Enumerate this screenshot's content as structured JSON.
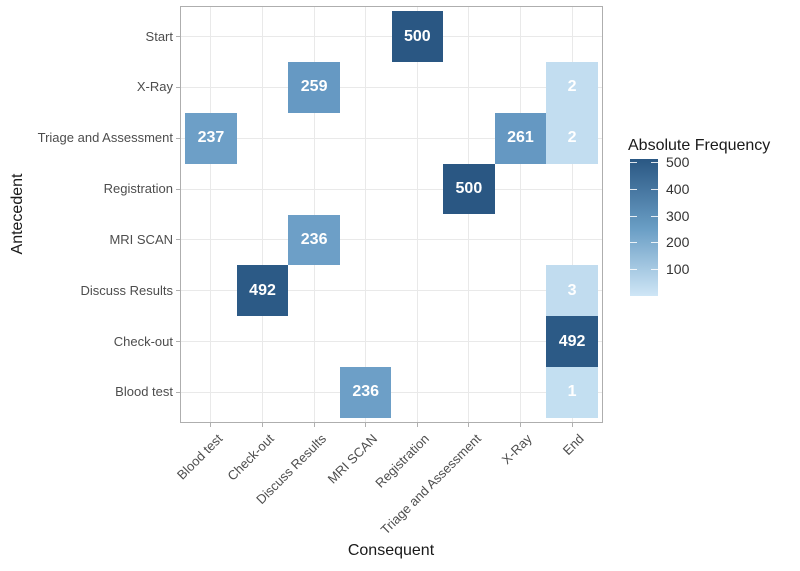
{
  "chart_data": {
    "type": "heatmap",
    "title": "",
    "xlabel": "Consequent",
    "ylabel": "Antecedent",
    "x_categories": [
      "Blood test",
      "Check-out",
      "Discuss Results",
      "MRI SCAN",
      "Registration",
      "Triage and Assessment",
      "X-Ray",
      "End"
    ],
    "y_categories": [
      "Start",
      "X-Ray",
      "Triage and Assessment",
      "Registration",
      "MRI SCAN",
      "Discuss Results",
      "Check-out",
      "Blood test"
    ],
    "grid": true,
    "legend_position": "right",
    "legend": {
      "title": "Absolute Frequency",
      "tick_labels": [
        500,
        400,
        300,
        200,
        100
      ],
      "range": [
        0,
        500
      ],
      "gradient_top": "#2a5783",
      "gradient_mid": "#6a9ec5",
      "gradient_bottom": "#cfe6f6"
    },
    "cells": [
      {
        "antecedent": "Start",
        "consequent": "Registration",
        "value": 500,
        "color": "#2a5783"
      },
      {
        "antecedent": "X-Ray",
        "consequent": "Discuss Results",
        "value": 259,
        "color": "#6699c3"
      },
      {
        "antecedent": "X-Ray",
        "consequent": "End",
        "value": 2,
        "color": "#c2ddf0"
      },
      {
        "antecedent": "Triage and Assessment",
        "consequent": "Blood test",
        "value": 237,
        "color": "#6d9fc7"
      },
      {
        "antecedent": "Triage and Assessment",
        "consequent": "X-Ray",
        "value": 261,
        "color": "#6598c2"
      },
      {
        "antecedent": "Triage and Assessment",
        "consequent": "End",
        "value": 2,
        "color": "#c2ddf0"
      },
      {
        "antecedent": "Registration",
        "consequent": "Triage and Assessment",
        "value": 500,
        "color": "#2a5783"
      },
      {
        "antecedent": "MRI SCAN",
        "consequent": "Discuss Results",
        "value": 236,
        "color": "#6d9fc7"
      },
      {
        "antecedent": "Discuss Results",
        "consequent": "Check-out",
        "value": 492,
        "color": "#2c5a86"
      },
      {
        "antecedent": "Discuss Results",
        "consequent": "End",
        "value": 3,
        "color": "#c1dcef"
      },
      {
        "antecedent": "Check-out",
        "consequent": "End",
        "value": 492,
        "color": "#2c5a86"
      },
      {
        "antecedent": "Blood test",
        "consequent": "MRI SCAN",
        "value": 236,
        "color": "#6d9fc7"
      },
      {
        "antecedent": "Blood test",
        "consequent": "End",
        "value": 1,
        "color": "#c3dff1"
      }
    ]
  },
  "colors": {
    "background": "#ffffff",
    "panel_border": "#aeaeae",
    "gridline": "#e9e9e9",
    "axis_tick": "#b0b0b0",
    "axis_text": "#4d4d4d",
    "axis_title": "#1a1a1a",
    "cell_text": "#ffffff"
  }
}
